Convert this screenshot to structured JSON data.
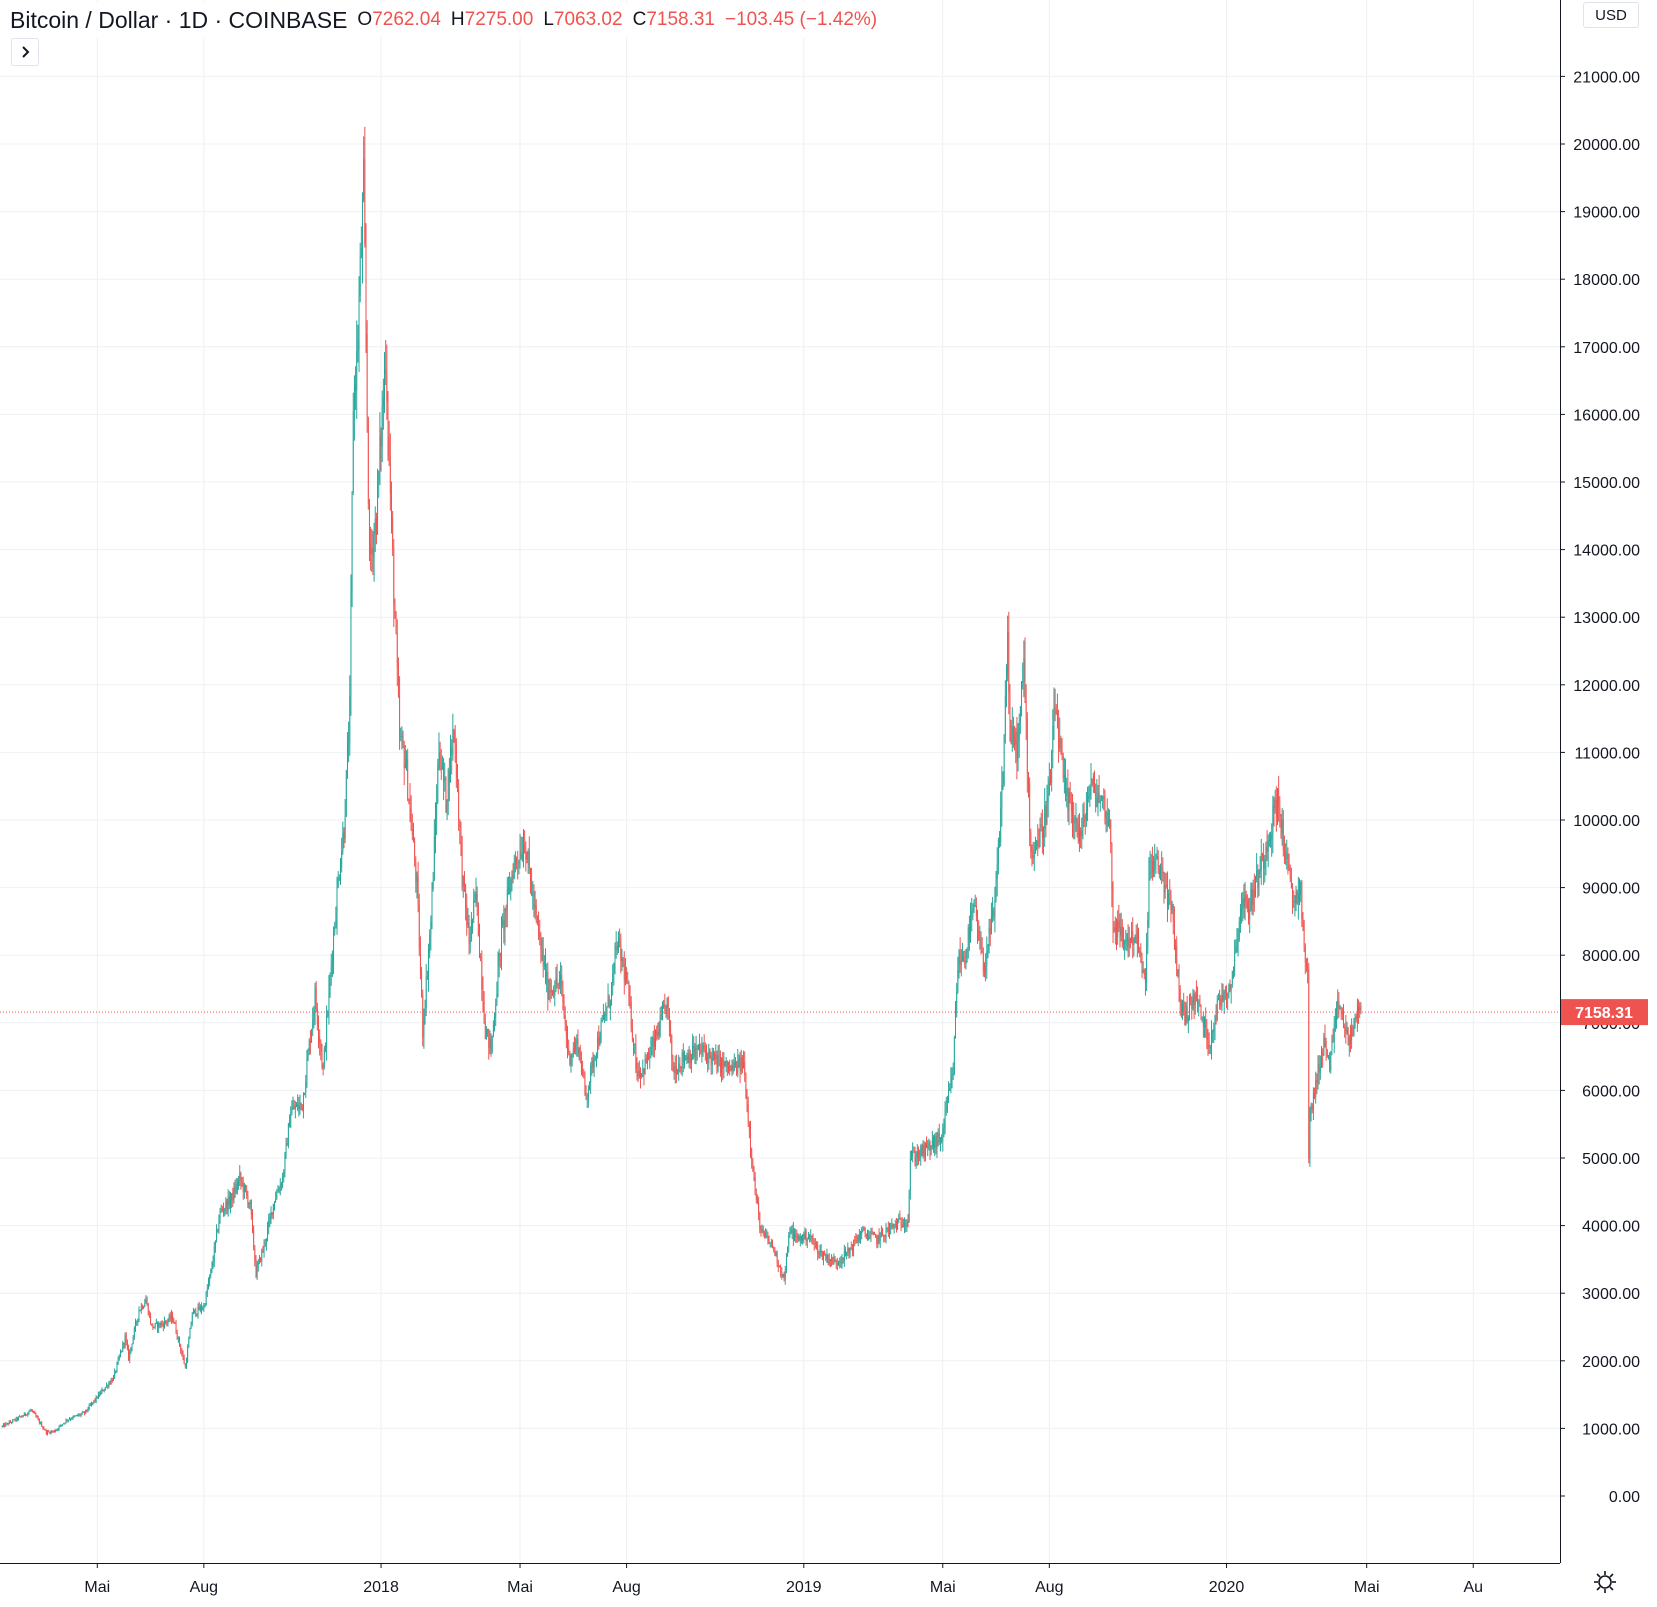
{
  "header": {
    "symbol": "Bitcoin / Dollar · 1D · COINBASE",
    "open_label": "O",
    "open": "7262.04",
    "high_label": "H",
    "high": "7275.00",
    "low_label": "L",
    "low": "7063.02",
    "close_label": "C",
    "close": "7158.31",
    "change": "−103.45 (−1.42%)"
  },
  "toggle_icon": "chevron-right-icon",
  "currency": "USD",
  "last_price_label": "7158.31",
  "colors": {
    "up": "#26a69a",
    "down": "#ef5350",
    "grid": "#eef0f3",
    "axis": "#131722"
  },
  "chart_data": {
    "type": "candlestick",
    "title": "Bitcoin / Dollar · 1D · COINBASE",
    "y_axis": {
      "currency": "USD",
      "ticks": [
        "0.00",
        "1000.00",
        "2000.00",
        "3000.00",
        "4000.00",
        "5000.00",
        "6000.00",
        "7000.00",
        "8000.00",
        "9000.00",
        "10000.00",
        "11000.00",
        "12000.00",
        "13000.00",
        "14000.00",
        "15000.00",
        "16000.00",
        "17000.00",
        "18000.00",
        "19000.00",
        "20000.00",
        "21000.00"
      ],
      "ylim": [
        -800,
        22000
      ]
    },
    "x_axis": {
      "ticks": [
        "Mai",
        "Aug",
        "2018",
        "Mai",
        "Aug",
        "2019",
        "Mai",
        "Aug",
        "2020",
        "Mai",
        "Au"
      ],
      "tick_dates": [
        "2017-05-01",
        "2017-08-01",
        "2018-01-01",
        "2018-05-01",
        "2018-08-01",
        "2019-01-01",
        "2019-05-01",
        "2019-08-01",
        "2020-01-01",
        "2020-05-01",
        "2020-08-01"
      ],
      "range": [
        "2017-02-06",
        "2020-08-01"
      ]
    },
    "last_price": 7158.31,
    "series_path": [
      [
        "2017-02-08",
        1030
      ],
      [
        "2017-02-25",
        1180
      ],
      [
        "2017-03-05",
        1270
      ],
      [
        "2017-03-18",
        940
      ],
      [
        "2017-03-25",
        960
      ],
      [
        "2017-04-05",
        1130
      ],
      [
        "2017-04-20",
        1230
      ],
      [
        "2017-05-05",
        1550
      ],
      [
        "2017-05-15",
        1750
      ],
      [
        "2017-05-25",
        2350
      ],
      [
        "2017-05-28",
        2050
      ],
      [
        "2017-06-06",
        2750
      ],
      [
        "2017-06-12",
        2900
      ],
      [
        "2017-06-17",
        2500
      ],
      [
        "2017-06-27",
        2550
      ],
      [
        "2017-07-05",
        2650
      ],
      [
        "2017-07-16",
        1900
      ],
      [
        "2017-07-22",
        2700
      ],
      [
        "2017-08-01",
        2800
      ],
      [
        "2017-08-08",
        3400
      ],
      [
        "2017-08-15",
        4200
      ],
      [
        "2017-08-25",
        4400
      ],
      [
        "2017-09-01",
        4700
      ],
      [
        "2017-09-10",
        4300
      ],
      [
        "2017-09-15",
        3300
      ],
      [
        "2017-09-22",
        3700
      ],
      [
        "2017-10-01",
        4400
      ],
      [
        "2017-10-08",
        4700
      ],
      [
        "2017-10-15",
        5700
      ],
      [
        "2017-10-25",
        5800
      ],
      [
        "2017-11-05",
        7400
      ],
      [
        "2017-11-12",
        6300
      ],
      [
        "2017-11-20",
        8100
      ],
      [
        "2017-11-26",
        9300
      ],
      [
        "2017-11-30",
        9900
      ],
      [
        "2017-12-05",
        11600
      ],
      [
        "2017-12-08",
        16200
      ],
      [
        "2017-12-11",
        16800
      ],
      [
        "2017-12-17",
        19400
      ],
      [
        "2017-12-22",
        13800
      ],
      [
        "2017-12-28",
        14500
      ],
      [
        "2018-01-05",
        16900
      ],
      [
        "2018-01-10",
        14300
      ],
      [
        "2018-01-17",
        11200
      ],
      [
        "2018-01-22",
        10900
      ],
      [
        "2018-02-01",
        9000
      ],
      [
        "2018-02-06",
        6900
      ],
      [
        "2018-02-13",
        8500
      ],
      [
        "2018-02-20",
        11100
      ],
      [
        "2018-02-26",
        10300
      ],
      [
        "2018-03-05",
        11400
      ],
      [
        "2018-03-12",
        9200
      ],
      [
        "2018-03-18",
        8200
      ],
      [
        "2018-03-24",
        8900
      ],
      [
        "2018-04-01",
        6900
      ],
      [
        "2018-04-06",
        6600
      ],
      [
        "2018-04-15",
        8300
      ],
      [
        "2018-04-25",
        9300
      ],
      [
        "2018-05-05",
        9700
      ],
      [
        "2018-05-15",
        8500
      ],
      [
        "2018-05-25",
        7500
      ],
      [
        "2018-06-05",
        7600
      ],
      [
        "2018-06-12",
        6500
      ],
      [
        "2018-06-20",
        6700
      ],
      [
        "2018-06-27",
        5900
      ],
      [
        "2018-07-05",
        6600
      ],
      [
        "2018-07-18",
        7400
      ],
      [
        "2018-07-24",
        8200
      ],
      [
        "2018-08-01",
        7600
      ],
      [
        "2018-08-10",
        6300
      ],
      [
        "2018-08-15",
        6300
      ],
      [
        "2018-08-25",
        6700
      ],
      [
        "2018-09-05",
        7300
      ],
      [
        "2018-09-10",
        6300
      ],
      [
        "2018-09-20",
        6500
      ],
      [
        "2018-10-05",
        6600
      ],
      [
        "2018-10-15",
        6450
      ],
      [
        "2018-10-30",
        6300
      ],
      [
        "2018-11-10",
        6400
      ],
      [
        "2018-11-14",
        5600
      ],
      [
        "2018-11-20",
        4500
      ],
      [
        "2018-11-25",
        3900
      ],
      [
        "2018-12-05",
        3700
      ],
      [
        "2018-12-15",
        3200
      ],
      [
        "2018-12-20",
        3950
      ],
      [
        "2018-12-25",
        3800
      ],
      [
        "2019-01-05",
        3850
      ],
      [
        "2019-01-15",
        3600
      ],
      [
        "2019-01-28",
        3450
      ],
      [
        "2019-02-08",
        3600
      ],
      [
        "2019-02-20",
        3900
      ],
      [
        "2019-03-05",
        3800
      ],
      [
        "2019-03-20",
        4000
      ],
      [
        "2019-04-01",
        4100
      ],
      [
        "2019-04-03",
        5000
      ],
      [
        "2019-04-15",
        5100
      ],
      [
        "2019-04-30",
        5300
      ],
      [
        "2019-05-10",
        6300
      ],
      [
        "2019-05-14",
        7900
      ],
      [
        "2019-05-20",
        8000
      ],
      [
        "2019-05-28",
        8700
      ],
      [
        "2019-06-05",
        7800
      ],
      [
        "2019-06-15",
        8700
      ],
      [
        "2019-06-22",
        10700
      ],
      [
        "2019-06-26",
        12800
      ],
      [
        "2019-06-28",
        11200
      ],
      [
        "2019-07-05",
        11100
      ],
      [
        "2019-07-10",
        12300
      ],
      [
        "2019-07-16",
        9500
      ],
      [
        "2019-07-25",
        9800
      ],
      [
        "2019-08-01",
        10400
      ],
      [
        "2019-08-06",
        11700
      ],
      [
        "2019-08-15",
        10300
      ],
      [
        "2019-08-22",
        10100
      ],
      [
        "2019-08-28",
        9700
      ],
      [
        "2019-09-05",
        10500
      ],
      [
        "2019-09-15",
        10300
      ],
      [
        "2019-09-22",
        10000
      ],
      [
        "2019-09-25",
        8500
      ],
      [
        "2019-10-05",
        8200
      ],
      [
        "2019-10-15",
        8300
      ],
      [
        "2019-10-23",
        7500
      ],
      [
        "2019-10-26",
        9300
      ],
      [
        "2019-11-05",
        9300
      ],
      [
        "2019-11-15",
        8600
      ],
      [
        "2019-11-22",
        7300
      ],
      [
        "2019-11-26",
        7100
      ],
      [
        "2019-12-05",
        7400
      ],
      [
        "2019-12-17",
        6700
      ],
      [
        "2019-12-25",
        7300
      ],
      [
        "2020-01-05",
        7600
      ],
      [
        "2020-01-14",
        8800
      ],
      [
        "2020-01-20",
        8700
      ],
      [
        "2020-02-01",
        9400
      ],
      [
        "2020-02-08",
        9900
      ],
      [
        "2020-02-14",
        10300
      ],
      [
        "2020-02-20",
        9600
      ],
      [
        "2020-02-27",
        8800
      ],
      [
        "2020-03-05",
        9000
      ],
      [
        "2020-03-08",
        8000
      ],
      [
        "2020-03-11",
        7900
      ],
      [
        "2020-03-12",
        4900
      ],
      [
        "2020-03-13",
        5600
      ],
      [
        "2020-03-19",
        6200
      ],
      [
        "2020-03-25",
        6700
      ],
      [
        "2020-03-30",
        6400
      ],
      [
        "2020-04-07",
        7300
      ],
      [
        "2020-04-15",
        6700
      ],
      [
        "2020-04-22",
        7100
      ],
      [
        "2020-04-26",
        7158
      ]
    ]
  }
}
